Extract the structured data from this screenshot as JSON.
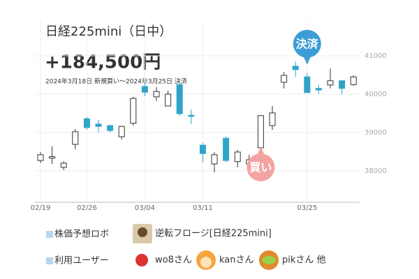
{
  "chart_data": {
    "type": "candlestick",
    "title": "日経225mini（日中）",
    "headline": "+184,500円",
    "subtitle": "2024年3月18日 新規買い～2024年3月25日 決済",
    "categories": [
      "02/19",
      null,
      null,
      null,
      "02/26",
      null,
      null,
      null,
      null,
      "03/04",
      null,
      null,
      null,
      null,
      "03/11",
      null,
      null,
      null,
      null,
      null,
      null,
      null,
      null,
      "03/25",
      null,
      null,
      null,
      null
    ],
    "open": [
      38270,
      38330,
      38090,
      38690,
      39360,
      39220,
      39180,
      38890,
      39240,
      40200,
      39930,
      39690,
      40250,
      39450,
      38670,
      38180,
      38850,
      38240,
      38180,
      38600,
      39180,
      40310,
      40730,
      40450,
      40150,
      40240,
      40350,
      40250
    ],
    "high": [
      38490,
      38640,
      38250,
      39090,
      39400,
      39330,
      39200,
      39160,
      39930,
      40310,
      40180,
      40090,
      40310,
      39600,
      38730,
      38490,
      38890,
      38550,
      38420,
      39440,
      39690,
      40580,
      40850,
      40550,
      40240,
      40670,
      40350,
      40490
    ],
    "low": [
      38200,
      38180,
      38020,
      38560,
      39070,
      39000,
      39000,
      38820,
      39180,
      39950,
      39820,
      39690,
      39440,
      39220,
      38220,
      37960,
      38220,
      38090,
      38130,
      38600,
      39070,
      40150,
      40450,
      40040,
      40000,
      40150,
      40000,
      40220
    ],
    "close": [
      38420,
      38370,
      38200,
      39020,
      39130,
      39160,
      39050,
      39160,
      39890,
      40050,
      40070,
      40000,
      39490,
      39420,
      38450,
      38420,
      38270,
      38490,
      38290,
      39440,
      39510,
      40490,
      40640,
      40040,
      40110,
      40350,
      40150,
      40450
    ],
    "up_color": "#ffffff",
    "down_color": "#30a4c8",
    "ylim": [
      37180,
      41910
    ],
    "yticks": [
      38000,
      39000,
      40000,
      41000
    ],
    "grid": true,
    "annotations": [
      {
        "text": "買い",
        "index": 19,
        "color": "#f4a3a3"
      },
      {
        "text": "決済",
        "index": 23,
        "color": "#3c9dd6"
      }
    ]
  },
  "footer": {
    "robot_label": "株価予想ロボ",
    "robot_name": "逆転フロージ[日経225mini]",
    "users_label": "利用ユーザー",
    "users": [
      "wo8さん",
      "kanさん",
      "pikさん 他"
    ]
  }
}
